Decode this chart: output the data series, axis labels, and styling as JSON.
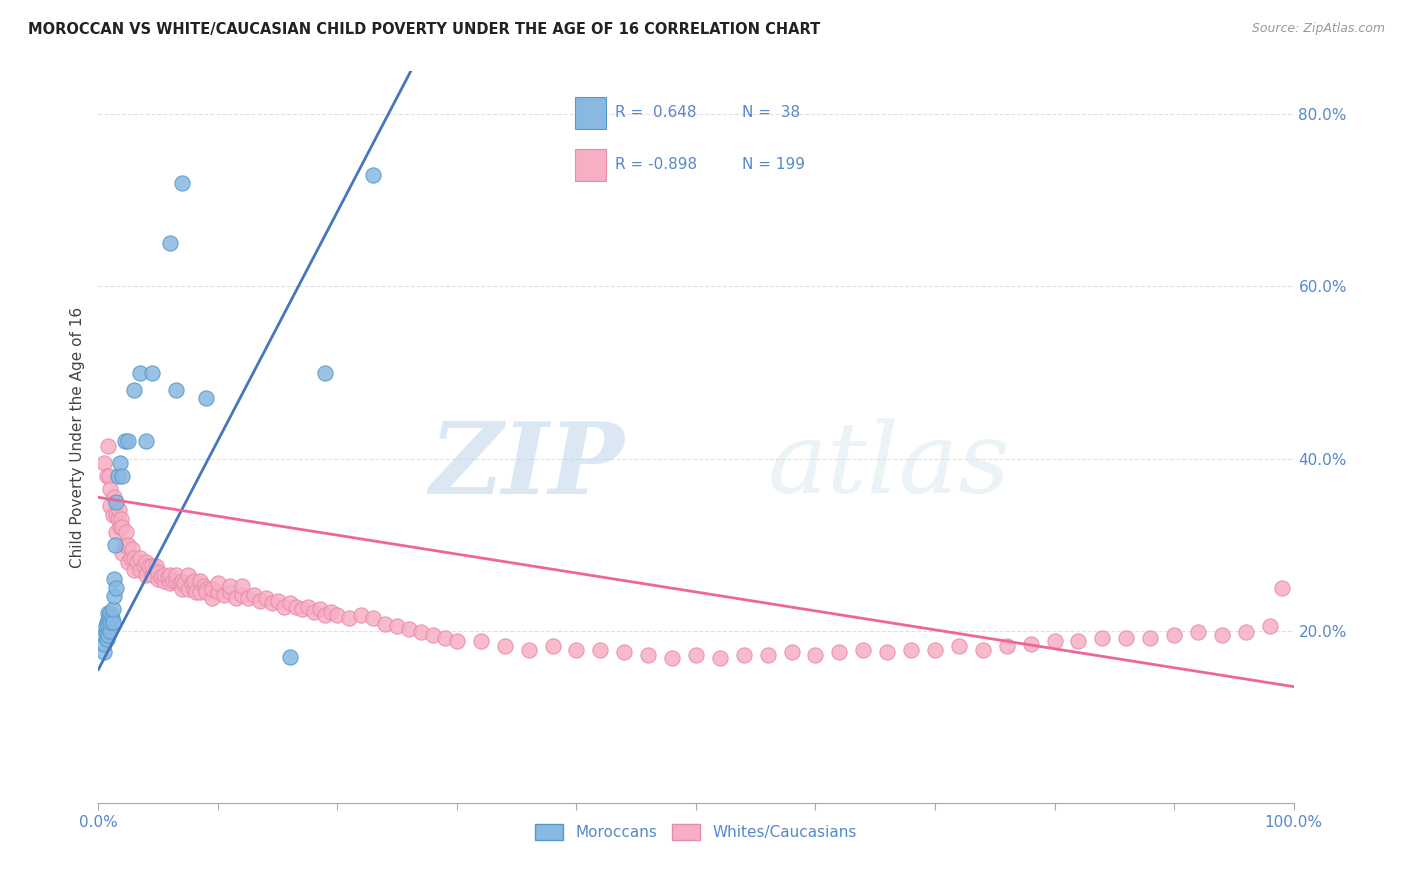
{
  "title": "MOROCCAN VS WHITE/CAUCASIAN CHILD POVERTY UNDER THE AGE OF 16 CORRELATION CHART",
  "source": "Source: ZipAtlas.com",
  "ylabel": "Child Poverty Under the Age of 16",
  "xlim": [
    0.0,
    1.0
  ],
  "ylim": [
    0.0,
    0.85
  ],
  "ytick_vals": [
    0.2,
    0.4,
    0.6,
    0.8
  ],
  "ytick_labels": [
    "20.0%",
    "40.0%",
    "60.0%",
    "80.0%"
  ],
  "xtick_vals": [
    0.0,
    0.1,
    0.2,
    0.3,
    0.4,
    0.5,
    0.6,
    0.7,
    0.8,
    0.9,
    1.0
  ],
  "xtick_labels_show": {
    "0.0": "0.0%",
    "1.0": "100.0%"
  },
  "moroccan_color": "#89b8e0",
  "moroccan_edge_color": "#5599cc",
  "caucasian_color": "#f7afc4",
  "caucasian_edge_color": "#e88aaa",
  "moroccan_line_color": "#4477bb",
  "caucasian_line_color": "#ee6699",
  "tick_label_color": "#5588cc",
  "moroccan_R": 0.648,
  "moroccan_N": 38,
  "caucasian_R": -0.898,
  "caucasian_N": 199,
  "watermark_zip": "ZIP",
  "watermark_atlas": "atlas",
  "legend_label_moroccan": "Moroccans",
  "legend_label_caucasian": "Whites/Caucasians",
  "moroccan_scatter_x": [
    0.005,
    0.005,
    0.005,
    0.006,
    0.006,
    0.007,
    0.007,
    0.008,
    0.008,
    0.008,
    0.009,
    0.01,
    0.01,
    0.01,
    0.011,
    0.012,
    0.012,
    0.013,
    0.013,
    0.014,
    0.015,
    0.015,
    0.016,
    0.018,
    0.02,
    0.022,
    0.025,
    0.03,
    0.035,
    0.04,
    0.045,
    0.06,
    0.065,
    0.07,
    0.09,
    0.16,
    0.19,
    0.23
  ],
  "moroccan_scatter_y": [
    0.175,
    0.185,
    0.195,
    0.2,
    0.205,
    0.19,
    0.21,
    0.195,
    0.205,
    0.22,
    0.215,
    0.2,
    0.21,
    0.22,
    0.215,
    0.21,
    0.225,
    0.24,
    0.26,
    0.3,
    0.25,
    0.35,
    0.38,
    0.395,
    0.38,
    0.42,
    0.42,
    0.48,
    0.5,
    0.42,
    0.5,
    0.65,
    0.48,
    0.72,
    0.47,
    0.17,
    0.5,
    0.73
  ],
  "caucasian_scatter_x": [
    0.005,
    0.007,
    0.008,
    0.009,
    0.01,
    0.01,
    0.012,
    0.013,
    0.015,
    0.015,
    0.016,
    0.017,
    0.018,
    0.019,
    0.02,
    0.02,
    0.022,
    0.023,
    0.025,
    0.025,
    0.027,
    0.028,
    0.03,
    0.03,
    0.032,
    0.035,
    0.035,
    0.038,
    0.04,
    0.04,
    0.042,
    0.045,
    0.045,
    0.048,
    0.05,
    0.05,
    0.052,
    0.055,
    0.055,
    0.058,
    0.06,
    0.06,
    0.062,
    0.065,
    0.065,
    0.068,
    0.07,
    0.07,
    0.072,
    0.075,
    0.075,
    0.078,
    0.08,
    0.08,
    0.082,
    0.085,
    0.085,
    0.088,
    0.09,
    0.09,
    0.095,
    0.095,
    0.1,
    0.1,
    0.105,
    0.11,
    0.11,
    0.115,
    0.12,
    0.12,
    0.125,
    0.13,
    0.135,
    0.14,
    0.145,
    0.15,
    0.155,
    0.16,
    0.165,
    0.17,
    0.175,
    0.18,
    0.185,
    0.19,
    0.195,
    0.2,
    0.21,
    0.22,
    0.23,
    0.24,
    0.25,
    0.26,
    0.27,
    0.28,
    0.29,
    0.3,
    0.32,
    0.34,
    0.36,
    0.38,
    0.4,
    0.42,
    0.44,
    0.46,
    0.48,
    0.5,
    0.52,
    0.54,
    0.56,
    0.58,
    0.6,
    0.62,
    0.64,
    0.66,
    0.68,
    0.7,
    0.72,
    0.74,
    0.76,
    0.78,
    0.8,
    0.82,
    0.84,
    0.86,
    0.88,
    0.9,
    0.92,
    0.94,
    0.96,
    0.98,
    0.99
  ],
  "caucasian_scatter_y": [
    0.395,
    0.38,
    0.415,
    0.38,
    0.345,
    0.365,
    0.335,
    0.355,
    0.315,
    0.335,
    0.33,
    0.34,
    0.32,
    0.33,
    0.29,
    0.32,
    0.3,
    0.315,
    0.28,
    0.3,
    0.285,
    0.295,
    0.27,
    0.285,
    0.28,
    0.27,
    0.285,
    0.275,
    0.265,
    0.28,
    0.275,
    0.265,
    0.275,
    0.275,
    0.26,
    0.268,
    0.262,
    0.258,
    0.265,
    0.262,
    0.255,
    0.265,
    0.258,
    0.258,
    0.265,
    0.255,
    0.248,
    0.258,
    0.255,
    0.265,
    0.248,
    0.255,
    0.248,
    0.258,
    0.245,
    0.258,
    0.245,
    0.252,
    0.248,
    0.245,
    0.238,
    0.248,
    0.245,
    0.255,
    0.242,
    0.245,
    0.252,
    0.238,
    0.242,
    0.252,
    0.238,
    0.242,
    0.235,
    0.238,
    0.232,
    0.235,
    0.228,
    0.232,
    0.228,
    0.225,
    0.228,
    0.222,
    0.225,
    0.218,
    0.222,
    0.218,
    0.215,
    0.218,
    0.215,
    0.208,
    0.205,
    0.202,
    0.198,
    0.195,
    0.192,
    0.188,
    0.188,
    0.182,
    0.178,
    0.182,
    0.178,
    0.178,
    0.175,
    0.172,
    0.168,
    0.172,
    0.168,
    0.172,
    0.172,
    0.175,
    0.172,
    0.175,
    0.178,
    0.175,
    0.178,
    0.178,
    0.182,
    0.178,
    0.182,
    0.185,
    0.188,
    0.188,
    0.192,
    0.192,
    0.192,
    0.195,
    0.198,
    0.195,
    0.198,
    0.205,
    0.25
  ],
  "moroccan_trendline_x": [
    0.0,
    0.265
  ],
  "moroccan_trendline_y": [
    0.155,
    0.86
  ],
  "caucasian_trendline_x": [
    0.0,
    1.0
  ],
  "caucasian_trendline_y": [
    0.355,
    0.135
  ],
  "background_color": "#ffffff",
  "grid_color": "#e0e0e0"
}
